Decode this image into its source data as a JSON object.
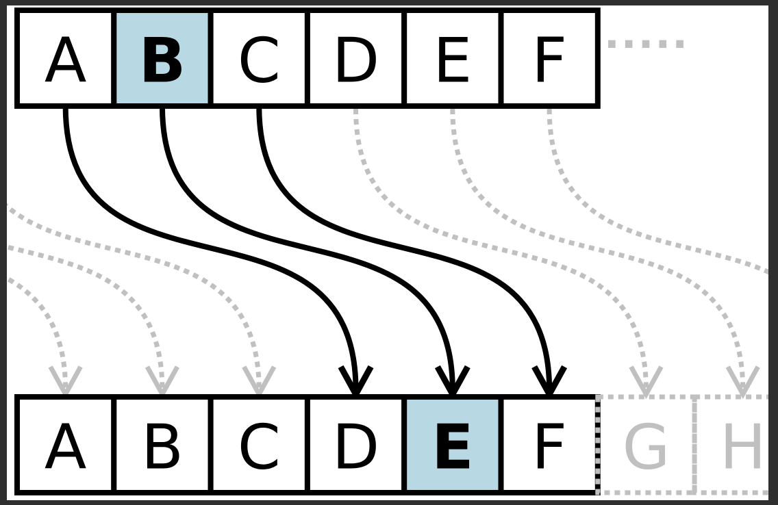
{
  "diagram": {
    "top_row": {
      "letters": [
        "A",
        "B",
        "C",
        "D",
        "E",
        "F"
      ],
      "highlighted": "B",
      "continuation": "....."
    },
    "bottom_row": {
      "letters": [
        "A",
        "B",
        "C",
        "D",
        "E",
        "F"
      ],
      "faded_letters": [
        "G",
        "H"
      ],
      "highlighted": "E"
    },
    "shift": 3,
    "colors": {
      "highlight": "#b8d8e3",
      "ink": "#000000",
      "faded": "#c0c0c0",
      "paper": "#ffffff",
      "frame": "#2f2f2f"
    }
  }
}
